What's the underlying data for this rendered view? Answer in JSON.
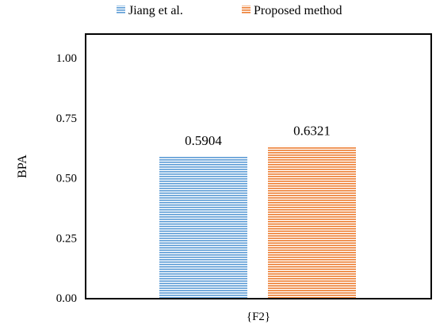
{
  "colors": {
    "jiang": "#5b9bd5",
    "proposed": "#ed7d31"
  },
  "chart_data": {
    "type": "bar",
    "categories": [
      "{F2}"
    ],
    "series": [
      {
        "name": "Jiang et al.",
        "values": [
          0.5904
        ],
        "color": "#5b9bd5"
      },
      {
        "name": "Proposed method",
        "values": [
          0.6321
        ],
        "color": "#ed7d31"
      }
    ],
    "data_labels": [
      "0.5904",
      "0.6321"
    ],
    "ylabel": "BPA",
    "xlabel": "",
    "ylim": [
      0,
      1
    ],
    "yticks": [
      "0.00",
      "0.25",
      "0.50",
      "0.75",
      "1.00"
    ],
    "grid": false,
    "legend": "top"
  }
}
